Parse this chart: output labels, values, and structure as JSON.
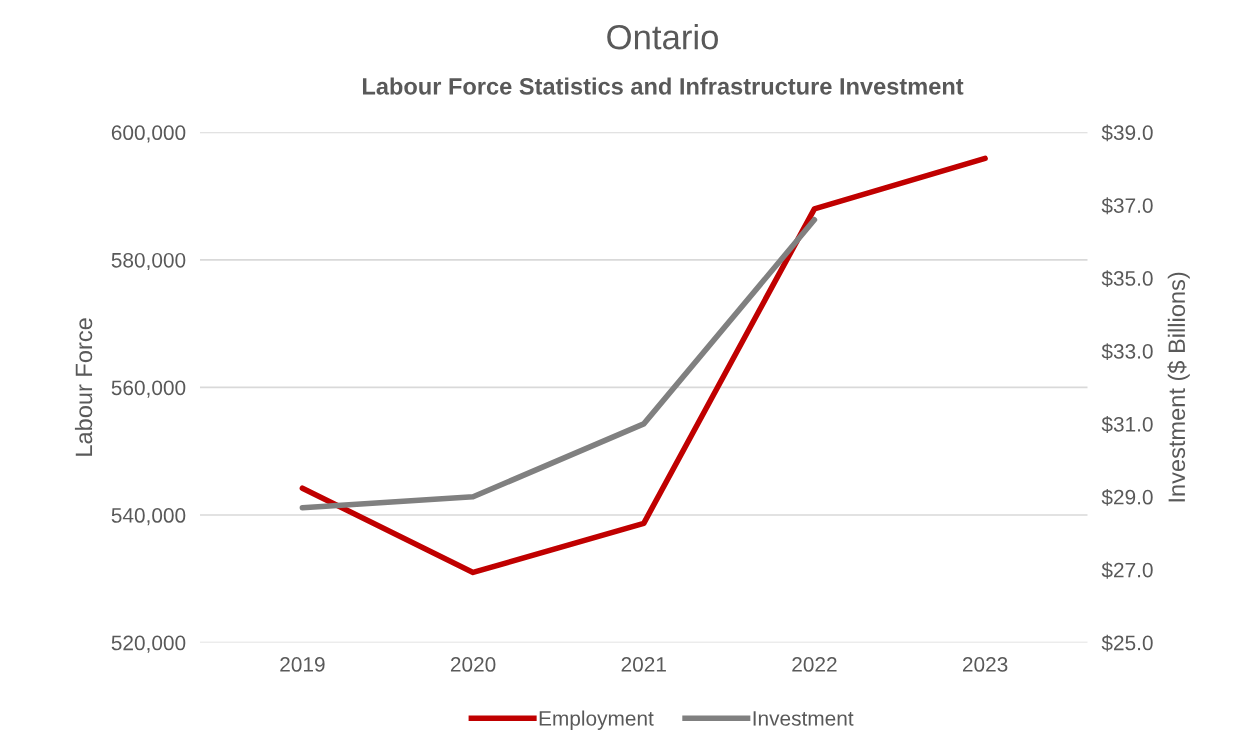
{
  "chart_data": {
    "type": "line",
    "title": "Ontario",
    "subtitle": "Labour Force Statistics and Infrastructure Investment",
    "ylabel": "Labour Force",
    "y2label": "Investment ($ Billions)",
    "categories": [
      "2019",
      "2020",
      "2021",
      "2022",
      "2023"
    ],
    "series": [
      {
        "name": "Employment",
        "color": "#c00000",
        "values": [
          544200,
          531000,
          538700,
          588000,
          595900
        ]
      },
      {
        "name": "Investment",
        "color": "#808080",
        "axis": "y2",
        "values": [
          28.7,
          29.0,
          31.0,
          36.6,
          null
        ]
      }
    ],
    "ylim": [
      520000,
      600000
    ],
    "yticks": [
      {
        "value": 520000,
        "label": "520,000"
      },
      {
        "value": 540000,
        "label": "540,000"
      },
      {
        "value": 560000,
        "label": "560,000"
      },
      {
        "value": 580000,
        "label": "580,000"
      },
      {
        "value": 600000,
        "label": "600,000"
      }
    ],
    "y2lim": [
      25,
      39
    ],
    "y2ticks": [
      {
        "value": 25,
        "label": "$25.0"
      },
      {
        "value": 27,
        "label": "$27.0"
      },
      {
        "value": 29,
        "label": "$29.0"
      },
      {
        "value": 31,
        "label": "$31.0"
      },
      {
        "value": 33,
        "label": "$33.0"
      },
      {
        "value": 35,
        "label": "$35.0"
      },
      {
        "value": 37,
        "label": "$37.0"
      },
      {
        "value": 39,
        "label": "$39.0"
      }
    ],
    "grid": "y",
    "legend": "bottom",
    "marker": "none",
    "line_style": "solid"
  }
}
